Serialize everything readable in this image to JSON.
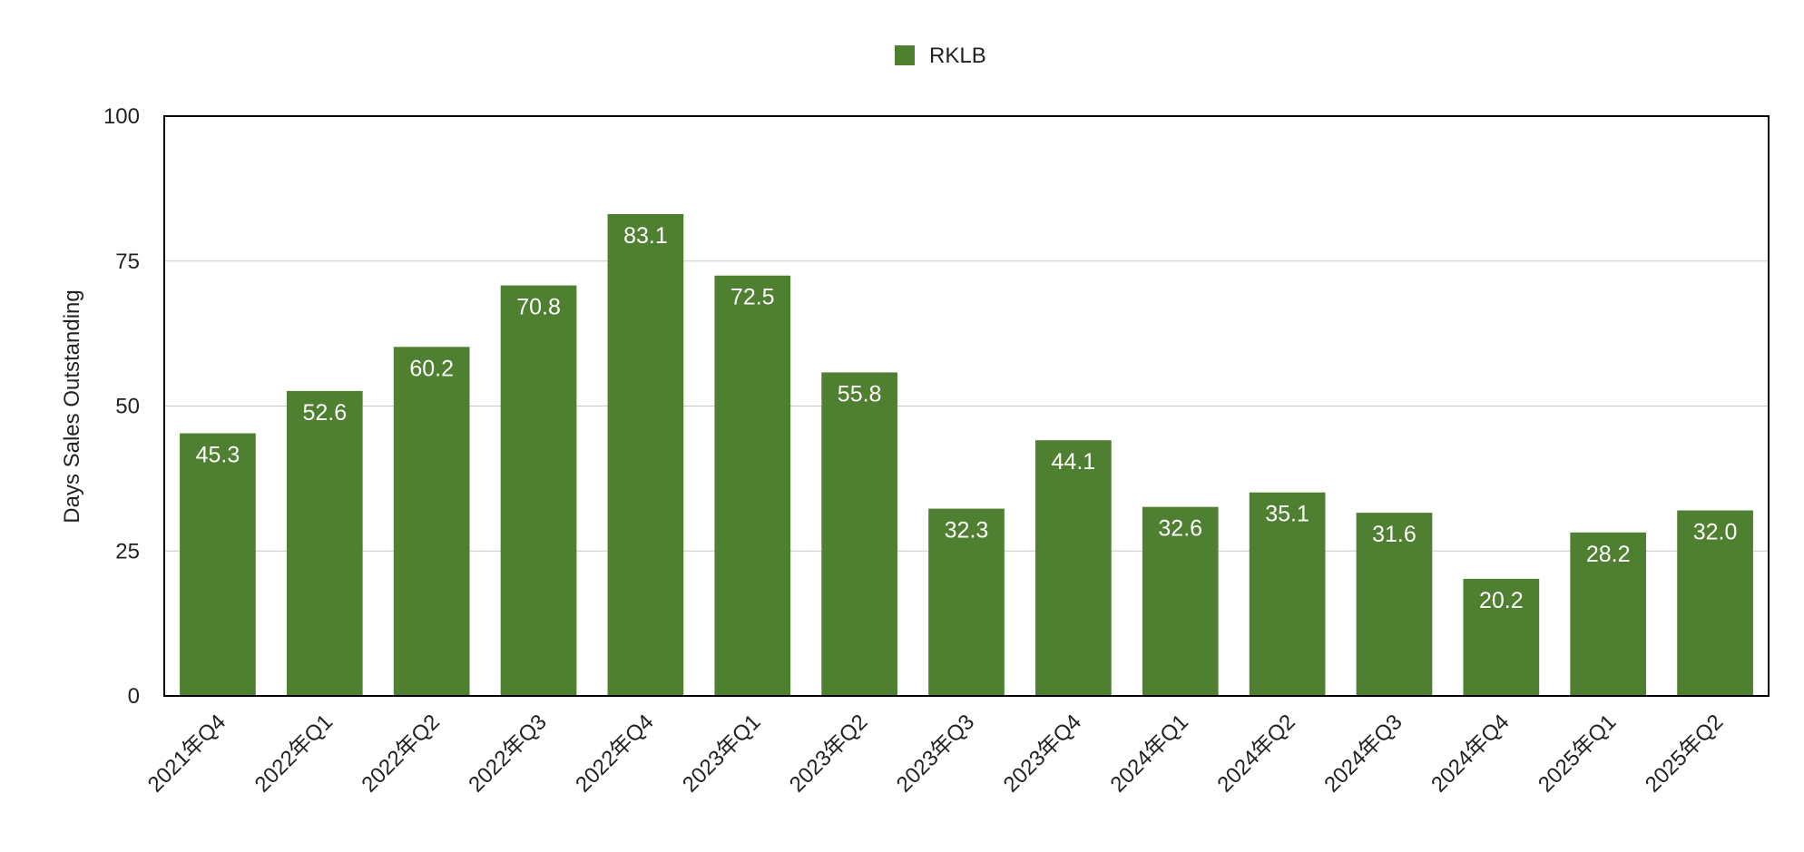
{
  "chart_data": {
    "type": "bar",
    "categories": [
      "2021年Q4",
      "2022年Q1",
      "2022年Q2",
      "2022年Q3",
      "2022年Q4",
      "2023年Q1",
      "2023年Q2",
      "2023年Q3",
      "2023年Q4",
      "2024年Q1",
      "2024年Q2",
      "2024年Q3",
      "2024年Q4",
      "2025年Q1",
      "2025年Q2"
    ],
    "series": [
      {
        "name": "RKLB",
        "color": "#4f7f30",
        "values": [
          45.3,
          52.6,
          60.2,
          70.8,
          83.1,
          72.5,
          55.8,
          32.3,
          44.1,
          32.6,
          35.1,
          31.6,
          20.2,
          28.2,
          32.0
        ],
        "labels": [
          "45.3",
          "52.6",
          "60.2",
          "70.8",
          "83.1",
          "72.5",
          "55.8",
          "32.3",
          "44.1",
          "32.6",
          "35.1",
          "31.6",
          "20.2",
          "28.2",
          "32.0"
        ]
      }
    ],
    "title": "",
    "xlabel": "",
    "ylabel": "Days Sales Outstanding",
    "ylim": [
      0,
      100
    ],
    "yticks": [
      0,
      25,
      50,
      75,
      100
    ],
    "ytick_labels": [
      "0",
      "25",
      "50",
      "75",
      "100"
    ],
    "grid": true,
    "legend": "top-center"
  }
}
